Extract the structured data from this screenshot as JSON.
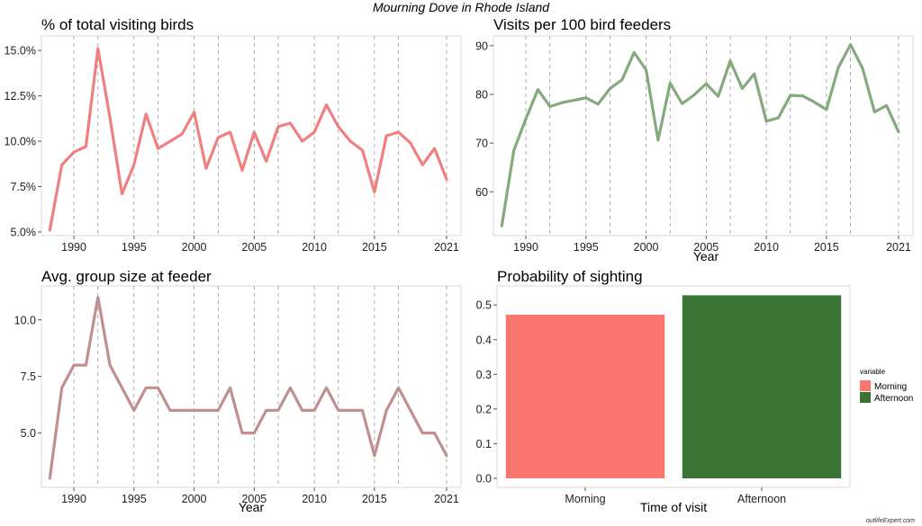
{
  "figure_title": "Mourning Dove in Rhode Island",
  "credit": "outlifeExpert.com",
  "chart_data": [
    {
      "type": "line",
      "title": "% of total visiting birds",
      "xlabel": "",
      "ylabel": "",
      "color": "#f08080",
      "x": [
        1988,
        1989,
        1990,
        1991,
        1992,
        1993,
        1994,
        1995,
        1996,
        1997,
        1998,
        1999,
        2000,
        2001,
        2002,
        2003,
        2004,
        2005,
        2006,
        2007,
        2008,
        2009,
        2010,
        2011,
        2012,
        2013,
        2014,
        2015,
        2016,
        2017,
        2018,
        2019,
        2020,
        2021
      ],
      "y": [
        5.1,
        8.7,
        9.4,
        9.7,
        15.1,
        11.3,
        7.1,
        8.7,
        11.5,
        9.6,
        10.0,
        10.4,
        11.6,
        8.5,
        10.2,
        10.5,
        8.4,
        10.5,
        8.9,
        10.8,
        11.0,
        10.0,
        10.5,
        12.0,
        10.8,
        10.0,
        9.5,
        7.2,
        10.3,
        10.5,
        9.9,
        8.7,
        9.6,
        7.9
      ],
      "xlim": [
        1987.3,
        2022.2
      ],
      "ylim": [
        4.8,
        15.8
      ],
      "xticks": [
        1990,
        1995,
        2000,
        2005,
        2010,
        2015,
        2021
      ],
      "xtick_labels": [
        "1990",
        "1995",
        "2000",
        "2005",
        "2010",
        "2015",
        "2021"
      ],
      "yticks": [
        5.0,
        7.5,
        10.0,
        12.5,
        15.0
      ],
      "ytick_labels": [
        "5.0%",
        "7.5%",
        "10.0%",
        "12.5%",
        "15.0%"
      ],
      "vgrid": [
        1990,
        1992,
        1995,
        1997,
        2000,
        2002,
        2005,
        2007,
        2010,
        2012,
        2015,
        2017,
        2021
      ],
      "grid": "dashed-vertical"
    },
    {
      "type": "line",
      "title": "Visits per 100 bird feeders",
      "xlabel": "Year",
      "ylabel": "",
      "color": "#86a97f",
      "x": [
        1988,
        1989,
        1990,
        1991,
        1992,
        1993,
        1994,
        1995,
        1996,
        1997,
        1998,
        1999,
        2000,
        2001,
        2002,
        2003,
        2004,
        2005,
        2006,
        2007,
        2008,
        2009,
        2010,
        2011,
        2012,
        2013,
        2014,
        2015,
        2016,
        2017,
        2018,
        2019,
        2020,
        2021
      ],
      "y": [
        53,
        68.5,
        75,
        81,
        77.5,
        78.3,
        78.8,
        79.3,
        78,
        81.2,
        83,
        88.6,
        85,
        70.6,
        82.3,
        78.1,
        79.9,
        82.2,
        79.6,
        86.9,
        81.2,
        84.2,
        74.5,
        75.2,
        79.8,
        79.7,
        78.4,
        76.9,
        85.6,
        90.2,
        85.4,
        76.4,
        77.7,
        72.3
      ],
      "xlim": [
        1987.3,
        2022.2
      ],
      "ylim": [
        51,
        92
      ],
      "xticks": [
        1990,
        1995,
        2000,
        2005,
        2010,
        2015,
        2021
      ],
      "xtick_labels": [
        "1990",
        "1995",
        "2000",
        "2005",
        "2010",
        "2015",
        "2021"
      ],
      "yticks": [
        60,
        70,
        80,
        90
      ],
      "ytick_labels": [
        "60",
        "70",
        "80",
        "90"
      ],
      "vgrid": [
        1990,
        1992,
        1995,
        1997,
        2000,
        2002,
        2005,
        2007,
        2010,
        2012,
        2015,
        2017,
        2021
      ],
      "grid": "dashed-vertical"
    },
    {
      "type": "line",
      "title": "Avg. group size at feeder",
      "xlabel": "Year",
      "ylabel": "",
      "color": "#c09090",
      "x": [
        1988,
        1989,
        1990,
        1991,
        1992,
        1993,
        1994,
        1995,
        1996,
        1997,
        1998,
        1999,
        2000,
        2001,
        2002,
        2003,
        2004,
        2005,
        2006,
        2007,
        2008,
        2009,
        2010,
        2011,
        2012,
        2013,
        2014,
        2015,
        2016,
        2017,
        2018,
        2019,
        2020,
        2021
      ],
      "y": [
        3,
        7,
        8,
        8,
        11,
        8,
        7,
        6,
        7,
        7,
        6,
        6,
        6,
        6,
        6,
        7,
        5,
        5,
        6,
        6,
        7,
        6,
        6,
        7,
        6,
        6,
        6,
        4,
        6,
        7,
        6,
        5,
        5,
        4
      ],
      "xlim": [
        1987.3,
        2022.2
      ],
      "ylim": [
        2.6,
        11.5
      ],
      "xticks": [
        1990,
        1995,
        2000,
        2005,
        2010,
        2015,
        2021
      ],
      "xtick_labels": [
        "1990",
        "1995",
        "2000",
        "2005",
        "2010",
        "2015",
        "2021"
      ],
      "yticks": [
        5.0,
        7.5,
        10.0
      ],
      "ytick_labels": [
        "5.0",
        "7.5",
        "10.0"
      ],
      "vgrid": [
        1990,
        1992,
        1995,
        1997,
        2000,
        2002,
        2005,
        2007,
        2010,
        2012,
        2015,
        2017,
        2021
      ],
      "grid": "dashed-vertical"
    },
    {
      "type": "bar",
      "title": "Probability of sighting",
      "xlabel": "Time of visit",
      "ylabel": "",
      "categories": [
        "Morning",
        "Afternoon"
      ],
      "values": [
        0.472,
        0.528
      ],
      "colors": [
        "#f8766d",
        "#3a7535"
      ],
      "ylim": [
        -0.026,
        0.555
      ],
      "yticks": [
        0.0,
        0.1,
        0.2,
        0.3,
        0.4,
        0.5
      ],
      "ytick_labels": [
        "0.0",
        "0.1",
        "0.2",
        "0.3",
        "0.4",
        "0.5"
      ],
      "legend": {
        "title": "variable",
        "placement": "right",
        "items": [
          {
            "label": "Morning",
            "color": "#f8766d"
          },
          {
            "label": "Afternoon",
            "color": "#3a7535"
          }
        ]
      },
      "grid": "none"
    }
  ]
}
